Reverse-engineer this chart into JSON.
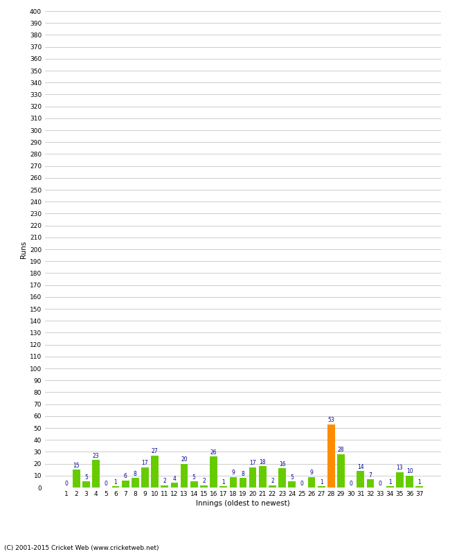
{
  "innings": [
    1,
    2,
    3,
    4,
    5,
    6,
    7,
    8,
    9,
    10,
    11,
    12,
    13,
    14,
    15,
    16,
    17,
    18,
    19,
    20,
    21,
    22,
    23,
    24,
    25,
    26,
    27,
    28,
    29,
    30,
    31,
    32,
    33,
    34,
    35,
    36,
    37
  ],
  "values": [
    0,
    15,
    5,
    23,
    0,
    1,
    6,
    8,
    17,
    27,
    2,
    4,
    20,
    5,
    2,
    26,
    1,
    9,
    8,
    17,
    18,
    2,
    16,
    5,
    0,
    9,
    1,
    53,
    28,
    0,
    14,
    7,
    0,
    1,
    13,
    10,
    1
  ],
  "highlight_index": 27,
  "bar_color_normal": "#66cc00",
  "bar_color_highlight": "#ff8c00",
  "label_color": "#000099",
  "background_color": "#ffffff",
  "grid_color": "#cccccc",
  "ylabel": "Runs",
  "xlabel": "Innings (oldest to newest)",
  "ytick_step": 10,
  "ymax": 400,
  "footer": "(C) 2001-2015 Cricket Web (www.cricketweb.net)"
}
